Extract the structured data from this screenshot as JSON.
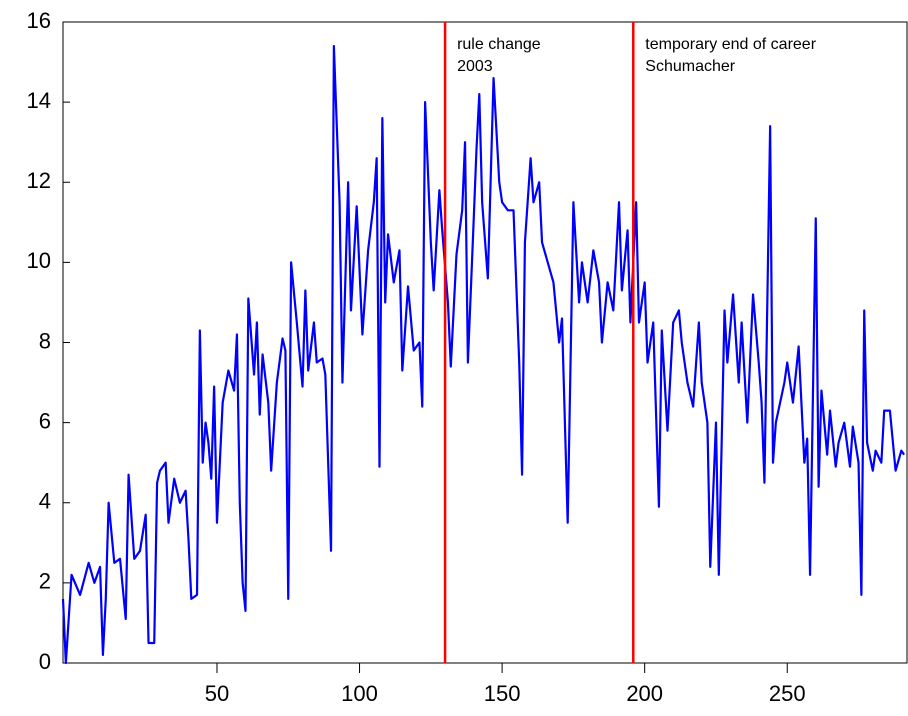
{
  "chart_data": {
    "type": "line",
    "x": [
      -4,
      -3,
      -1,
      2,
      5,
      7,
      9,
      10,
      11,
      12,
      14,
      16,
      18,
      19,
      21,
      23,
      25,
      26,
      28,
      29,
      30,
      32,
      33,
      35,
      37,
      39,
      40,
      41,
      43,
      44,
      45,
      46,
      47,
      48,
      49,
      50,
      52,
      54,
      56,
      57,
      58,
      59,
      60,
      61,
      63,
      64,
      65,
      66,
      68,
      69,
      71,
      73,
      74,
      75,
      76,
      78,
      80,
      81,
      82,
      84,
      85,
      87,
      88,
      90,
      91,
      93,
      94,
      96,
      97,
      99,
      101,
      103,
      105,
      106,
      107,
      108,
      109,
      110,
      112,
      114,
      115,
      117,
      119,
      121,
      122,
      123,
      125,
      126,
      128,
      129,
      131,
      132,
      134,
      136,
      137,
      138,
      140,
      141,
      142,
      143,
      145,
      147,
      149,
      150,
      152,
      154,
      156,
      157,
      158,
      160,
      161,
      163,
      164,
      166,
      168,
      170,
      171,
      173,
      175,
      177,
      178,
      180,
      182,
      184,
      185,
      187,
      189,
      191,
      192,
      194,
      195,
      197,
      198,
      200,
      201,
      203,
      205,
      206,
      208,
      210,
      212,
      213,
      215,
      217,
      219,
      220,
      222,
      223,
      225,
      226,
      228,
      229,
      231,
      233,
      234,
      236,
      238,
      240,
      241,
      242,
      244,
      245,
      246,
      249,
      250,
      252,
      254,
      256,
      257,
      258,
      260,
      261,
      262,
      264,
      265,
      267,
      268,
      270,
      272,
      273,
      275,
      276,
      277,
      278,
      280,
      281,
      283,
      284,
      286,
      288,
      290,
      291
    ],
    "series": [
      {
        "color": "#0000ff",
        "values": [
          1.6,
          0,
          2.2,
          1.7,
          2.5,
          2.0,
          2.4,
          0.2,
          1.6,
          4.0,
          2.5,
          2.6,
          1.1,
          4.7,
          2.6,
          2.8,
          3.7,
          0.5,
          0.5,
          4.5,
          4.8,
          5.0,
          3.5,
          4.6,
          4.0,
          4.3,
          3.1,
          1.6,
          1.7,
          8.3,
          5.0,
          6.0,
          5.5,
          4.6,
          6.9,
          3.5,
          6.5,
          7.3,
          6.8,
          8.2,
          4.0,
          2.0,
          1.3,
          9.1,
          7.2,
          8.5,
          6.2,
          7.7,
          6.5,
          4.8,
          7.0,
          8.1,
          7.8,
          1.6,
          10.0,
          8.5,
          6.9,
          9.3,
          7.3,
          8.5,
          7.5,
          7.6,
          7.2,
          2.8,
          15.4,
          11.5,
          7.0,
          12.0,
          8.8,
          11.4,
          8.2,
          10.3,
          11.5,
          12.6,
          4.9,
          13.6,
          9.0,
          10.7,
          9.5,
          10.3,
          7.3,
          9.4,
          7.8,
          8.0,
          6.4,
          14.0,
          10.5,
          9.3,
          11.8,
          10.8,
          9.0,
          7.4,
          10.2,
          11.3,
          13.0,
          7.5,
          11.0,
          12.8,
          14.2,
          11.5,
          9.6,
          14.6,
          12.0,
          11.5,
          11.3,
          11.3,
          7.5,
          4.7,
          10.5,
          12.6,
          11.5,
          12.0,
          10.5,
          10.0,
          9.5,
          8.0,
          8.6,
          3.5,
          11.5,
          9.0,
          10.0,
          9.0,
          10.3,
          9.5,
          8.0,
          9.5,
          8.8,
          11.5,
          9.3,
          10.8,
          8.5,
          11.5,
          8.5,
          9.5,
          7.5,
          8.5,
          3.9,
          8.3,
          5.8,
          8.5,
          8.8,
          8.0,
          7.0,
          6.4,
          8.5,
          7.0,
          6.0,
          2.4,
          6.0,
          2.2,
          8.8,
          7.5,
          9.2,
          7.0,
          8.5,
          6.0,
          9.2,
          7.5,
          6.5,
          4.5,
          13.4,
          5.0,
          6.0,
          7.0,
          7.5,
          6.5,
          7.9,
          5.0,
          5.6,
          2.2,
          11.1,
          4.4,
          6.8,
          5.2,
          6.3,
          4.9,
          5.5,
          6.0,
          4.9,
          5.9,
          5.0,
          1.7,
          8.8,
          5.5,
          4.8,
          5.3,
          5.0,
          6.3,
          6.3,
          4.8,
          5.3,
          5.2
        ]
      }
    ],
    "xlim": [
      -4,
      292
    ],
    "xticks": [
      50,
      100,
      150,
      200,
      250
    ],
    "ylim": [
      0,
      16
    ],
    "yticks": [
      0,
      2,
      4,
      6,
      8,
      10,
      12,
      14,
      16
    ],
    "vlines": [
      {
        "x": 130,
        "color": "#ff0000",
        "label": [
          "rule change",
          "2003"
        ]
      },
      {
        "x": 196,
        "color": "#ff0000",
        "label": [
          "temporary end of career",
          "Schumacher"
        ]
      }
    ]
  }
}
